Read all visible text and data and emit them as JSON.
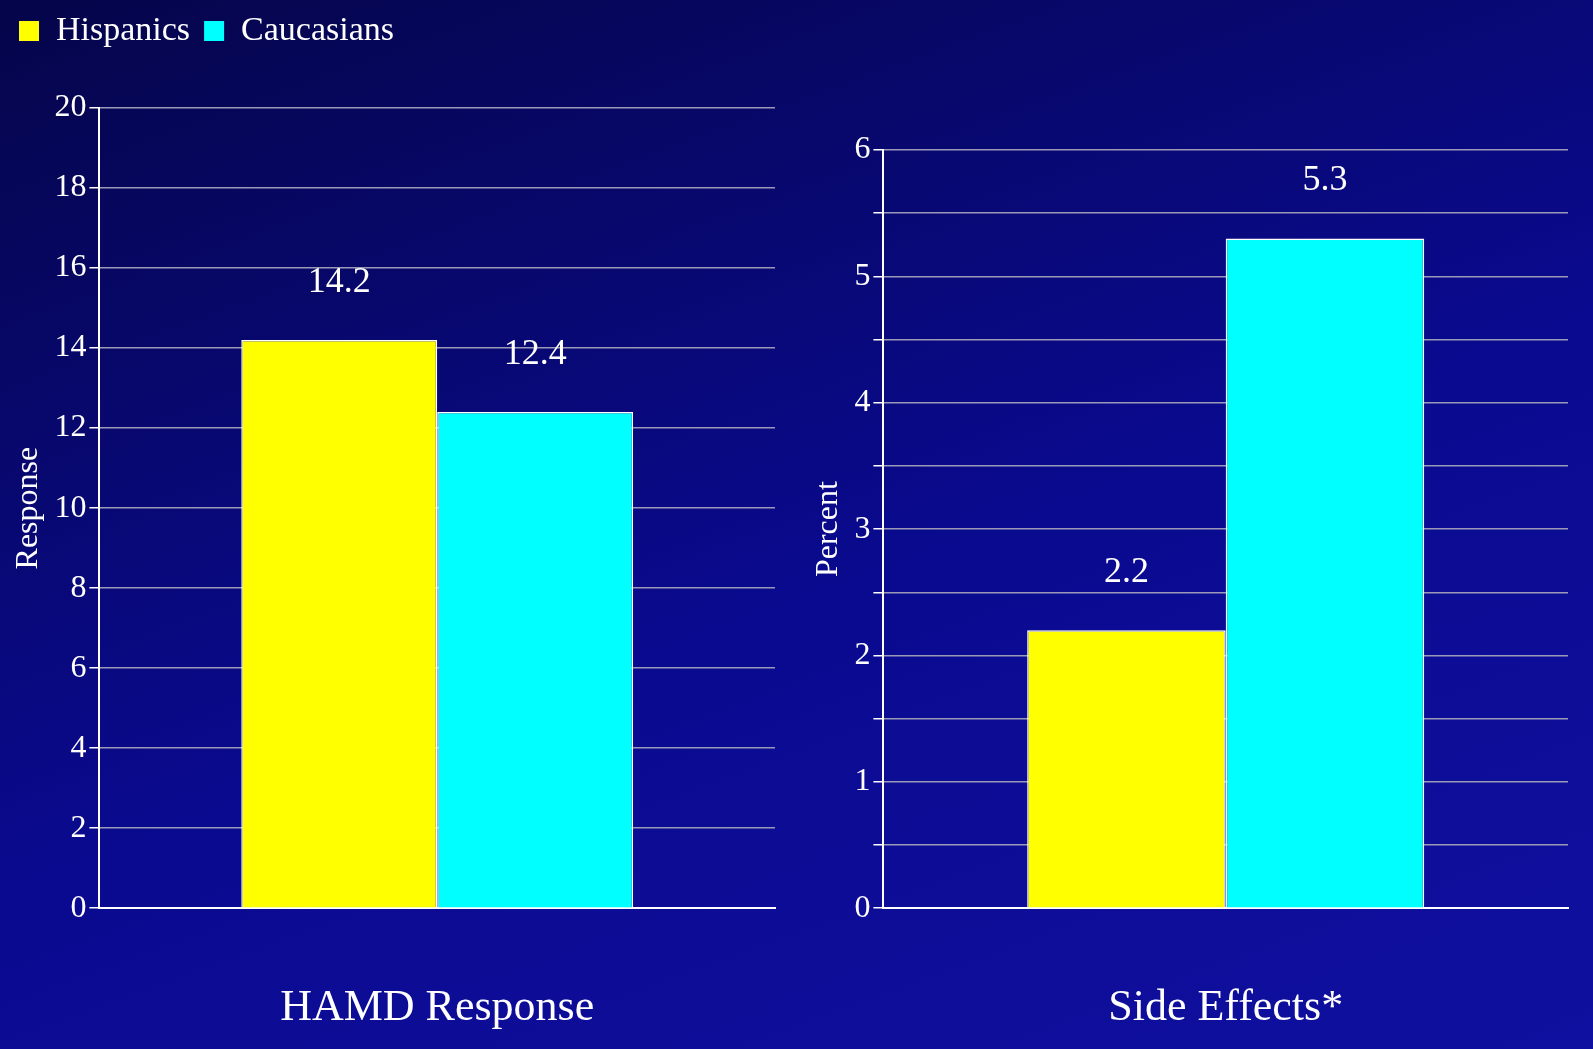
{
  "chart_data": [
    {
      "type": "bar",
      "xlabel": "HAMD Response",
      "ylabel": "Response",
      "categories": [
        null
      ],
      "series": [
        {
          "name": "Hispanics",
          "color": "#ffff00",
          "values": [
            14.2
          ]
        },
        {
          "name": "Caucasians",
          "color": "#00ffff",
          "values": [
            12.4
          ]
        }
      ],
      "ylim": [
        0,
        20
      ],
      "yticks": [
        0,
        2,
        4,
        6,
        8,
        10,
        12,
        14,
        16,
        18,
        20
      ],
      "grid": "y",
      "legend": "top left",
      "data_labels": true
    },
    {
      "type": "bar",
      "xlabel": "Side Effects*",
      "ylabel": "Percent",
      "categories": [
        null
      ],
      "series": [
        {
          "color": "#ffff00",
          "values": [
            2.2
          ]
        },
        {
          "color": "#00ffff",
          "values": [
            5.3
          ]
        }
      ],
      "ylim": [
        0,
        6
      ],
      "yticks": [
        0,
        {
          "value": 0.5,
          "label": null
        },
        1,
        {
          "value": 1.5,
          "label": null
        },
        2,
        {
          "value": 2.5,
          "label": null
        },
        3,
        {
          "value": 3.5,
          "label": null
        },
        4,
        {
          "value": 4.5,
          "label": null
        },
        5,
        {
          "value": 5.5,
          "label": null
        },
        6
      ],
      "grid": "y",
      "data_labels": true
    }
  ]
}
